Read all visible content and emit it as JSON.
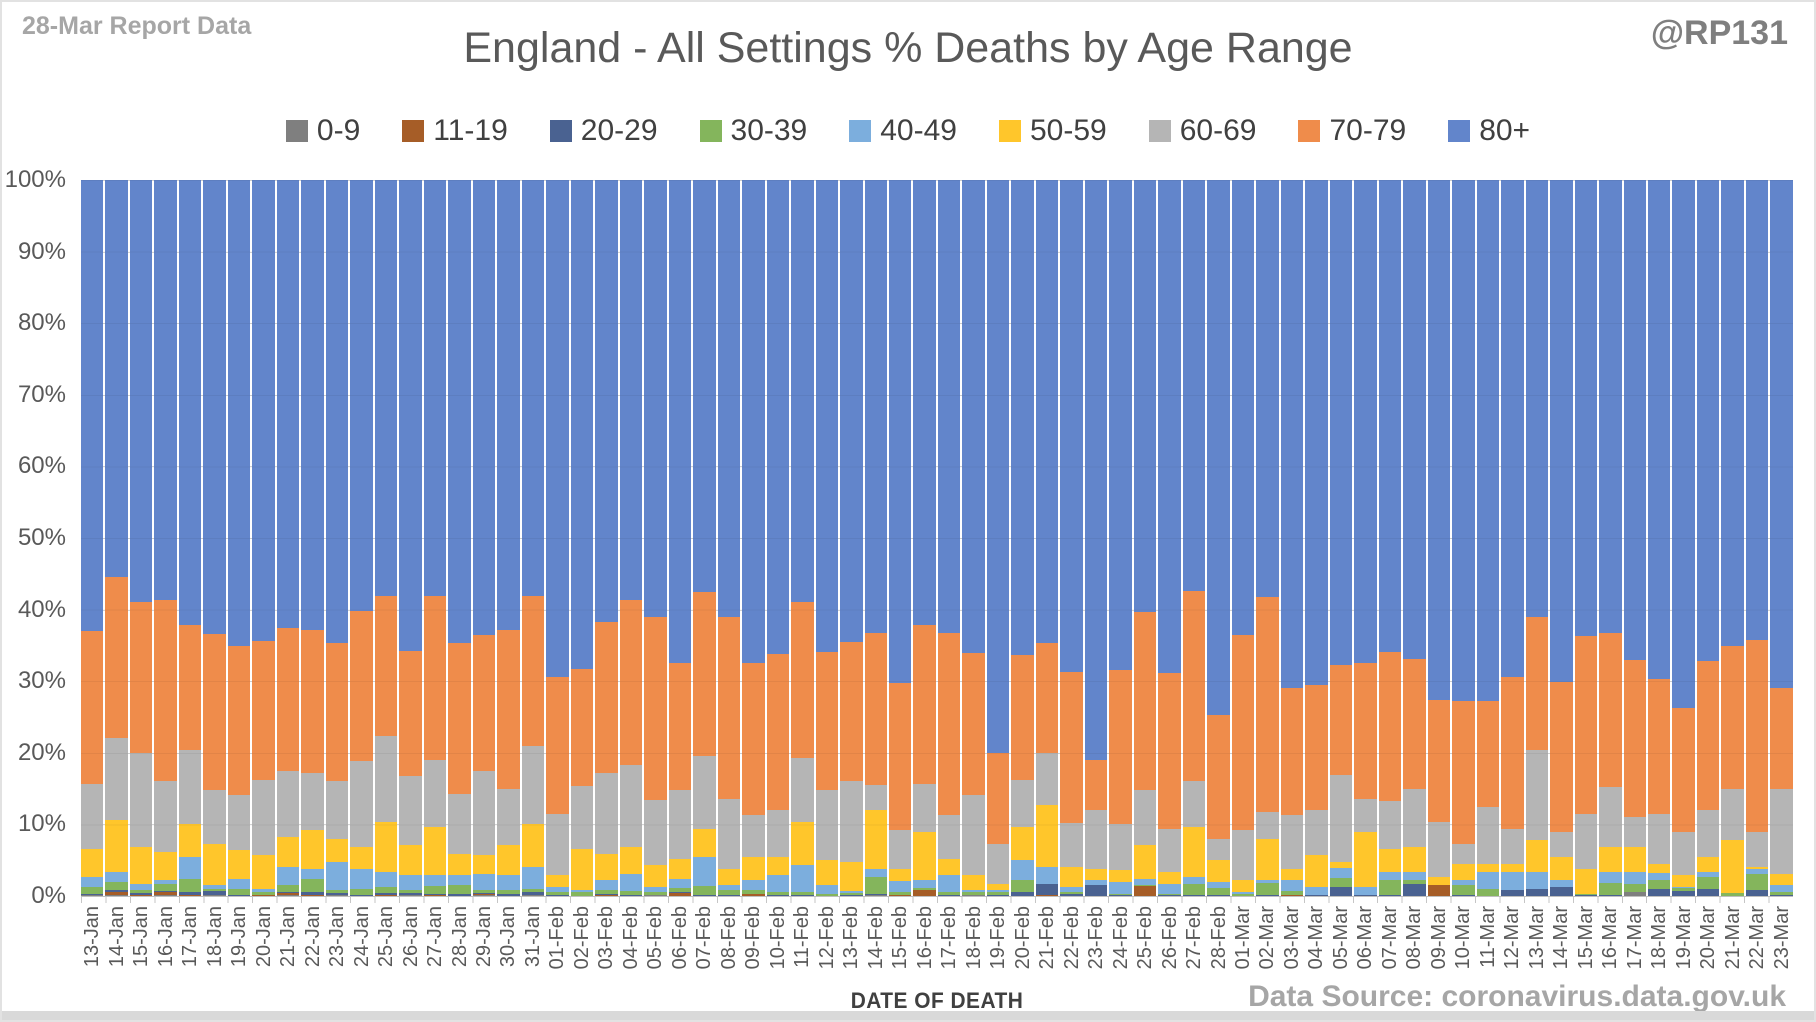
{
  "header": {
    "report_label": "28-Mar Report Data",
    "handle": "@RP131"
  },
  "footer": {
    "source": "Data Source: coronavirus.data.gov.uk"
  },
  "chart_data": {
    "type": "bar",
    "subtype": "stacked-100",
    "title": "England - All Settings % Deaths by Age Range",
    "xlabel": "DATE OF DEATH",
    "ylabel": "",
    "ylim": [
      0,
      100
    ],
    "y_tick_step": 10,
    "y_tick_suffix": "%",
    "grid": true,
    "legend_position": "top",
    "columns": [
      "0-9",
      "11-19",
      "20-29",
      "30-39",
      "40-49",
      "50-59",
      "60-69",
      "70-79",
      "80+"
    ],
    "colors": [
      "#7f7f7f",
      "#a65d27",
      "#4a6291",
      "#84b55c",
      "#7caedd",
      "#ffc62b",
      "#b5b5b5",
      "#ef8c4b",
      "#6285cb"
    ],
    "rows": [
      {
        "date": "13-Jan",
        "values": [
          0.2,
          0,
          0.1,
          0.9,
          1.5,
          3.9,
          9.1,
          21.3,
          63.0
        ]
      },
      {
        "date": "14-Jan",
        "values": [
          0.1,
          0.5,
          0.2,
          1.2,
          1.4,
          7.2,
          11.5,
          22.5,
          55.4
        ]
      },
      {
        "date": "15-Jan",
        "values": [
          0,
          0.1,
          0.3,
          0.4,
          0.9,
          5.2,
          13.1,
          21.1,
          58.9
        ]
      },
      {
        "date": "16-Jan",
        "values": [
          0.1,
          0.5,
          0.1,
          1.0,
          0.5,
          4.0,
          9.8,
          25.4,
          58.6
        ]
      },
      {
        "date": "17-Jan",
        "values": [
          0,
          0.1,
          0.5,
          1.7,
          3.2,
          4.6,
          10.3,
          17.5,
          62.1
        ]
      },
      {
        "date": "18-Jan",
        "values": [
          0.1,
          0,
          0.6,
          0.3,
          0.5,
          5.8,
          7.5,
          21.8,
          63.4
        ]
      },
      {
        "date": "19-Jan",
        "values": [
          0,
          0,
          0.1,
          0.9,
          1.4,
          4.0,
          7.7,
          20.8,
          65.1
        ]
      },
      {
        "date": "20-Jan",
        "values": [
          0,
          0.1,
          0,
          0.5,
          0.4,
          4.7,
          10.5,
          19.4,
          64.4
        ]
      },
      {
        "date": "21-Jan",
        "values": [
          0.2,
          0.2,
          0.2,
          1.0,
          2.5,
          4.2,
          9.1,
          20.1,
          62.5
        ]
      },
      {
        "date": "22-Jan",
        "values": [
          0,
          0.1,
          0.4,
          1.9,
          1.4,
          5.4,
          8.0,
          20.0,
          62.8
        ]
      },
      {
        "date": "23-Jan",
        "values": [
          0.1,
          0.1,
          0.2,
          0.5,
          3.9,
          3.2,
          8.0,
          19.4,
          64.6
        ]
      },
      {
        "date": "24-Jan",
        "values": [
          0,
          0,
          0.2,
          0.8,
          2.8,
          3.1,
          11.9,
          21.0,
          60.2
        ]
      },
      {
        "date": "25-Jan",
        "values": [
          0,
          0.1,
          0.3,
          0.9,
          2.1,
          7.0,
          11.9,
          19.6,
          58.1
        ]
      },
      {
        "date": "26-Jan",
        "values": [
          0.1,
          0,
          0.3,
          0.5,
          2.0,
          4.2,
          9.6,
          17.5,
          65.8
        ]
      },
      {
        "date": "27-Jan",
        "values": [
          0,
          0.1,
          0.2,
          1.1,
          1.5,
          6.8,
          9.3,
          22.9,
          58.1
        ]
      },
      {
        "date": "28-Jan",
        "values": [
          0,
          0,
          0.3,
          1.2,
          1.4,
          3.0,
          8.4,
          21.1,
          64.6
        ]
      },
      {
        "date": "29-Jan",
        "values": [
          0.1,
          0.2,
          0.1,
          0.4,
          2.3,
          2.6,
          11.8,
          18.9,
          63.6
        ]
      },
      {
        "date": "30-Jan",
        "values": [
          0,
          0,
          0.3,
          0.5,
          2.1,
          4.2,
          7.9,
          22.1,
          62.9
        ]
      },
      {
        "date": "31-Jan",
        "values": [
          0.1,
          0.1,
          0.4,
          0.4,
          3.1,
          6.0,
          10.8,
          21.0,
          58.1
        ]
      },
      {
        "date": "01-Feb",
        "values": [
          0,
          0,
          0.2,
          0.4,
          0.6,
          1.7,
          8.6,
          19.1,
          69.4
        ]
      },
      {
        "date": "02-Feb",
        "values": [
          0,
          0,
          0,
          0.6,
          0.3,
          5.7,
          8.7,
          16.4,
          68.3
        ]
      },
      {
        "date": "03-Feb",
        "values": [
          0,
          0.1,
          0.2,
          0.5,
          1.5,
          3.6,
          11.3,
          21.0,
          61.8
        ]
      },
      {
        "date": "04-Feb",
        "values": [
          0,
          0,
          0.1,
          0.6,
          2.4,
          3.8,
          11.4,
          23.0,
          58.7
        ]
      },
      {
        "date": "05-Feb",
        "values": [
          0.1,
          0,
          0.1,
          0.4,
          0.7,
          3.0,
          9.1,
          25.6,
          61.0
        ]
      },
      {
        "date": "06-Feb",
        "values": [
          0,
          0.4,
          0.1,
          0.6,
          1.3,
          2.8,
          9.6,
          17.8,
          67.4
        ]
      },
      {
        "date": "07-Feb",
        "values": [
          0,
          0,
          0.1,
          1.3,
          4.1,
          3.9,
          10.1,
          22.9,
          57.6
        ]
      },
      {
        "date": "08-Feb",
        "values": [
          0,
          0,
          0.2,
          0.6,
          0.7,
          2.3,
          9.8,
          25.4,
          61.0
        ]
      },
      {
        "date": "09-Feb",
        "values": [
          0,
          0.3,
          0,
          0.5,
          1.4,
          3.3,
          5.8,
          21.2,
          67.5
        ]
      },
      {
        "date": "10-Feb",
        "values": [
          0,
          0,
          0.1,
          0.5,
          2.3,
          2.6,
          6.5,
          21.8,
          66.2
        ]
      },
      {
        "date": "11-Feb",
        "values": [
          0,
          0,
          0.2,
          0.4,
          3.7,
          6.1,
          8.9,
          21.7,
          59.0
        ]
      },
      {
        "date": "12-Feb",
        "values": [
          0,
          0,
          0,
          0.3,
          1.2,
          3.5,
          9.8,
          19.3,
          65.9
        ]
      },
      {
        "date": "13-Feb",
        "values": [
          0,
          0,
          0.1,
          0.3,
          0.3,
          4.1,
          11.2,
          19.5,
          64.5
        ]
      },
      {
        "date": "14-Feb",
        "values": [
          0.1,
          0,
          0.2,
          2.3,
          1.2,
          8.2,
          3.5,
          21.2,
          63.3
        ]
      },
      {
        "date": "15-Feb",
        "values": [
          0,
          0.1,
          0.1,
          0.4,
          1.5,
          1.7,
          5.4,
          20.6,
          70.2
        ]
      },
      {
        "date": "16-Feb",
        "values": [
          0,
          0.8,
          0,
          0.3,
          1.2,
          6.7,
          6.7,
          22.2,
          62.1
        ]
      },
      {
        "date": "17-Feb",
        "values": [
          0,
          0,
          0.2,
          0.4,
          2.4,
          2.2,
          6.1,
          25.4,
          63.3
        ]
      },
      {
        "date": "18-Feb",
        "values": [
          0.1,
          0,
          0.1,
          0.4,
          0.3,
          2.0,
          11.2,
          19.8,
          66.1
        ]
      },
      {
        "date": "19-Feb",
        "values": [
          0,
          0,
          0.1,
          0.4,
          0.4,
          0.8,
          5.6,
          12.7,
          80.0
        ]
      },
      {
        "date": "20-Feb",
        "values": [
          0,
          0,
          0.6,
          1.6,
          2.8,
          4.7,
          6.5,
          17.5,
          66.3
        ]
      },
      {
        "date": "21-Feb",
        "values": [
          0,
          0.1,
          1.6,
          0,
          2.4,
          8.6,
          7.3,
          15.4,
          64.6
        ]
      },
      {
        "date": "22-Feb",
        "values": [
          0,
          0,
          0.3,
          0.2,
          0.7,
          2.8,
          6.2,
          21.1,
          68.7
        ]
      },
      {
        "date": "23-Feb",
        "values": [
          0,
          0,
          1.5,
          0,
          0.7,
          1.6,
          8.2,
          7.0,
          81.0
        ]
      },
      {
        "date": "24-Feb",
        "values": [
          0,
          0,
          0.1,
          0.2,
          1.7,
          1.6,
          6.5,
          21.5,
          68.4
        ]
      },
      {
        "date": "25-Feb",
        "values": [
          0,
          1.4,
          0,
          0.2,
          0.8,
          4.7,
          7.7,
          24.9,
          60.3
        ]
      },
      {
        "date": "26-Feb",
        "values": [
          0,
          0,
          0.1,
          0.2,
          1.4,
          1.7,
          6.0,
          21.8,
          68.8
        ]
      },
      {
        "date": "27-Feb",
        "values": [
          0,
          0,
          0.2,
          1.5,
          0.9,
          7.1,
          6.3,
          26.6,
          57.4
        ]
      },
      {
        "date": "28-Feb",
        "values": [
          0,
          0,
          0.1,
          1.0,
          0.9,
          3.0,
          3.0,
          17.3,
          74.7
        ]
      },
      {
        "date": "01-Mar",
        "values": [
          0,
          0,
          0,
          0.3,
          0.2,
          1.7,
          7.0,
          27.2,
          63.6
        ]
      },
      {
        "date": "02-Mar",
        "values": [
          0,
          0,
          0.1,
          1.7,
          0.4,
          5.8,
          3.8,
          30.0,
          58.2
        ]
      },
      {
        "date": "03-Mar",
        "values": [
          0,
          0.1,
          0,
          0.6,
          1.5,
          1.6,
          7.5,
          17.8,
          70.9
        ]
      },
      {
        "date": "04-Mar",
        "values": [
          0,
          0,
          0.1,
          0,
          1.2,
          4.4,
          6.3,
          17.5,
          70.5
        ]
      },
      {
        "date": "05-Mar",
        "values": [
          0,
          0,
          1.3,
          1.2,
          1.4,
          0.9,
          12.1,
          15.4,
          67.7
        ]
      },
      {
        "date": "06-Mar",
        "values": [
          0,
          0,
          0.1,
          0,
          1.2,
          7.7,
          4.6,
          19.0,
          67.4
        ]
      },
      {
        "date": "07-Mar",
        "values": [
          0,
          0,
          0.1,
          2.2,
          1.1,
          3.2,
          6.6,
          20.9,
          65.9
        ]
      },
      {
        "date": "08-Mar",
        "values": [
          0,
          0,
          1.7,
          0.5,
          1.2,
          3.5,
          8.1,
          18.1,
          66.9
        ]
      },
      {
        "date": "09-Mar",
        "values": [
          0,
          1.5,
          0,
          0,
          0,
          1.2,
          7.7,
          17.0,
          72.6
        ]
      },
      {
        "date": "10-Mar",
        "values": [
          0,
          0,
          0.1,
          1.5,
          0.7,
          2.2,
          2.8,
          20.0,
          72.7
        ]
      },
      {
        "date": "11-Mar",
        "values": [
          0,
          0,
          0,
          1.0,
          2.3,
          1.1,
          8.0,
          14.9,
          72.7
        ]
      },
      {
        "date": "12-Mar",
        "values": [
          0,
          0,
          0.8,
          0,
          2.6,
          1.0,
          5.0,
          21.2,
          69.4
        ]
      },
      {
        "date": "13-Mar",
        "values": [
          0,
          0,
          1.0,
          0,
          2.3,
          4.5,
          12.6,
          18.5,
          61.1
        ]
      },
      {
        "date": "14-Mar",
        "values": [
          0,
          0,
          1.3,
          0,
          0.9,
          3.3,
          3.5,
          20.9,
          70.1
        ]
      },
      {
        "date": "15-Mar",
        "values": [
          0,
          0,
          0.1,
          0.2,
          0,
          3.4,
          7.8,
          24.8,
          63.7
        ]
      },
      {
        "date": "16-Mar",
        "values": [
          0,
          0,
          0.2,
          1.6,
          1.5,
          3.6,
          8.3,
          21.5,
          63.3
        ]
      },
      {
        "date": "17-Mar",
        "values": [
          0.5,
          0,
          0,
          1.2,
          1.6,
          3.5,
          4.2,
          21.9,
          67.1
        ]
      },
      {
        "date": "18-Mar",
        "values": [
          0,
          0,
          1.0,
          1.2,
          1.0,
          1.3,
          7.0,
          18.8,
          69.7
        ]
      },
      {
        "date": "19-Mar",
        "values": [
          0,
          0,
          0.7,
          0.4,
          0.2,
          1.6,
          6.1,
          17.3,
          73.7
        ]
      },
      {
        "date": "20-Mar",
        "values": [
          0,
          0,
          1.0,
          1.6,
          0.8,
          2.1,
          6.5,
          20.8,
          67.2
        ]
      },
      {
        "date": "21-Mar",
        "values": [
          0,
          0,
          0,
          0.4,
          0,
          7.4,
          7.2,
          19.9,
          65.1
        ]
      },
      {
        "date": "22-Mar",
        "values": [
          0,
          0,
          0.8,
          2.3,
          0.6,
          0.4,
          4.9,
          26.7,
          64.3
        ]
      },
      {
        "date": "23-Mar",
        "values": [
          0,
          0,
          0.2,
          0.4,
          0.9,
          1.6,
          11.9,
          14.1,
          70.9
        ]
      }
    ]
  }
}
